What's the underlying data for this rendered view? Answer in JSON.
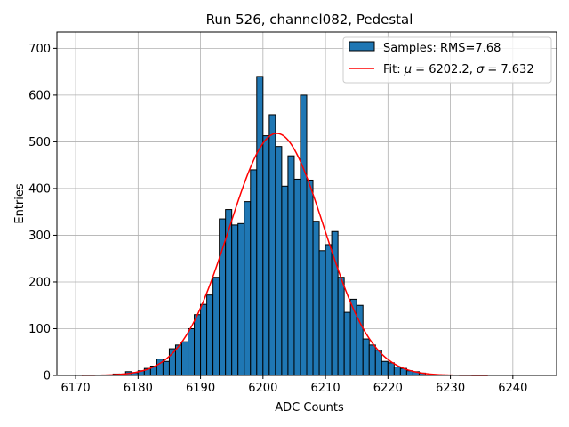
{
  "chart_data": {
    "type": "bar",
    "title": "Run 526, channel082, Pedestal",
    "xlabel": "ADC Counts",
    "ylabel": "Entries",
    "xlim": [
      6167,
      6247
    ],
    "ylim": [
      0,
      735
    ],
    "xticks": [
      6170,
      6180,
      6190,
      6200,
      6210,
      6220,
      6230,
      6240
    ],
    "yticks": [
      0,
      100,
      200,
      300,
      400,
      500,
      600,
      700
    ],
    "grid": true,
    "legend_position": "top-right",
    "bin_width": 1,
    "bins": {
      "left_edges": [
        6176,
        6177,
        6178,
        6179,
        6180,
        6181,
        6182,
        6183,
        6184,
        6185,
        6186,
        6187,
        6188,
        6189,
        6190,
        6191,
        6192,
        6193,
        6194,
        6195,
        6196,
        6197,
        6198,
        6199,
        6200,
        6201,
        6202,
        6203,
        6204,
        6205,
        6206,
        6207,
        6208,
        6209,
        6210,
        6211,
        6212,
        6213,
        6214,
        6215,
        6216,
        6217,
        6218,
        6219,
        6220,
        6221,
        6222,
        6223,
        6224,
        6225
      ],
      "counts": [
        3,
        3,
        8,
        6,
        10,
        15,
        20,
        35,
        30,
        57,
        65,
        72,
        100,
        130,
        152,
        172,
        210,
        335,
        355,
        322,
        325,
        372,
        440,
        640,
        513,
        558,
        490,
        405,
        470,
        420,
        600,
        418,
        330,
        267,
        280,
        308,
        210,
        135,
        163,
        150,
        78,
        65,
        54,
        30,
        27,
        18,
        15,
        10,
        8,
        5
      ]
    },
    "series": [
      {
        "name": "Samples: RMS=7.68",
        "kind": "histogram",
        "color": "#1f77b4"
      },
      {
        "name": "Fit: μ = 6202.2, σ = 7.632",
        "kind": "gaussian-fit",
        "color": "#ff0000",
        "mu": 6202.2,
        "sigma": 7.632,
        "amplitude": 518,
        "x_range": [
          6171,
          6236
        ]
      }
    ],
    "legend": [
      {
        "label": "Samples: RMS=7.68"
      },
      {
        "label_prefix": "Fit: ",
        "mu_symbol": "μ",
        "mu_text": " = 6202.2, ",
        "sigma_symbol": "σ",
        "sigma_text": " = 7.632"
      }
    ]
  }
}
